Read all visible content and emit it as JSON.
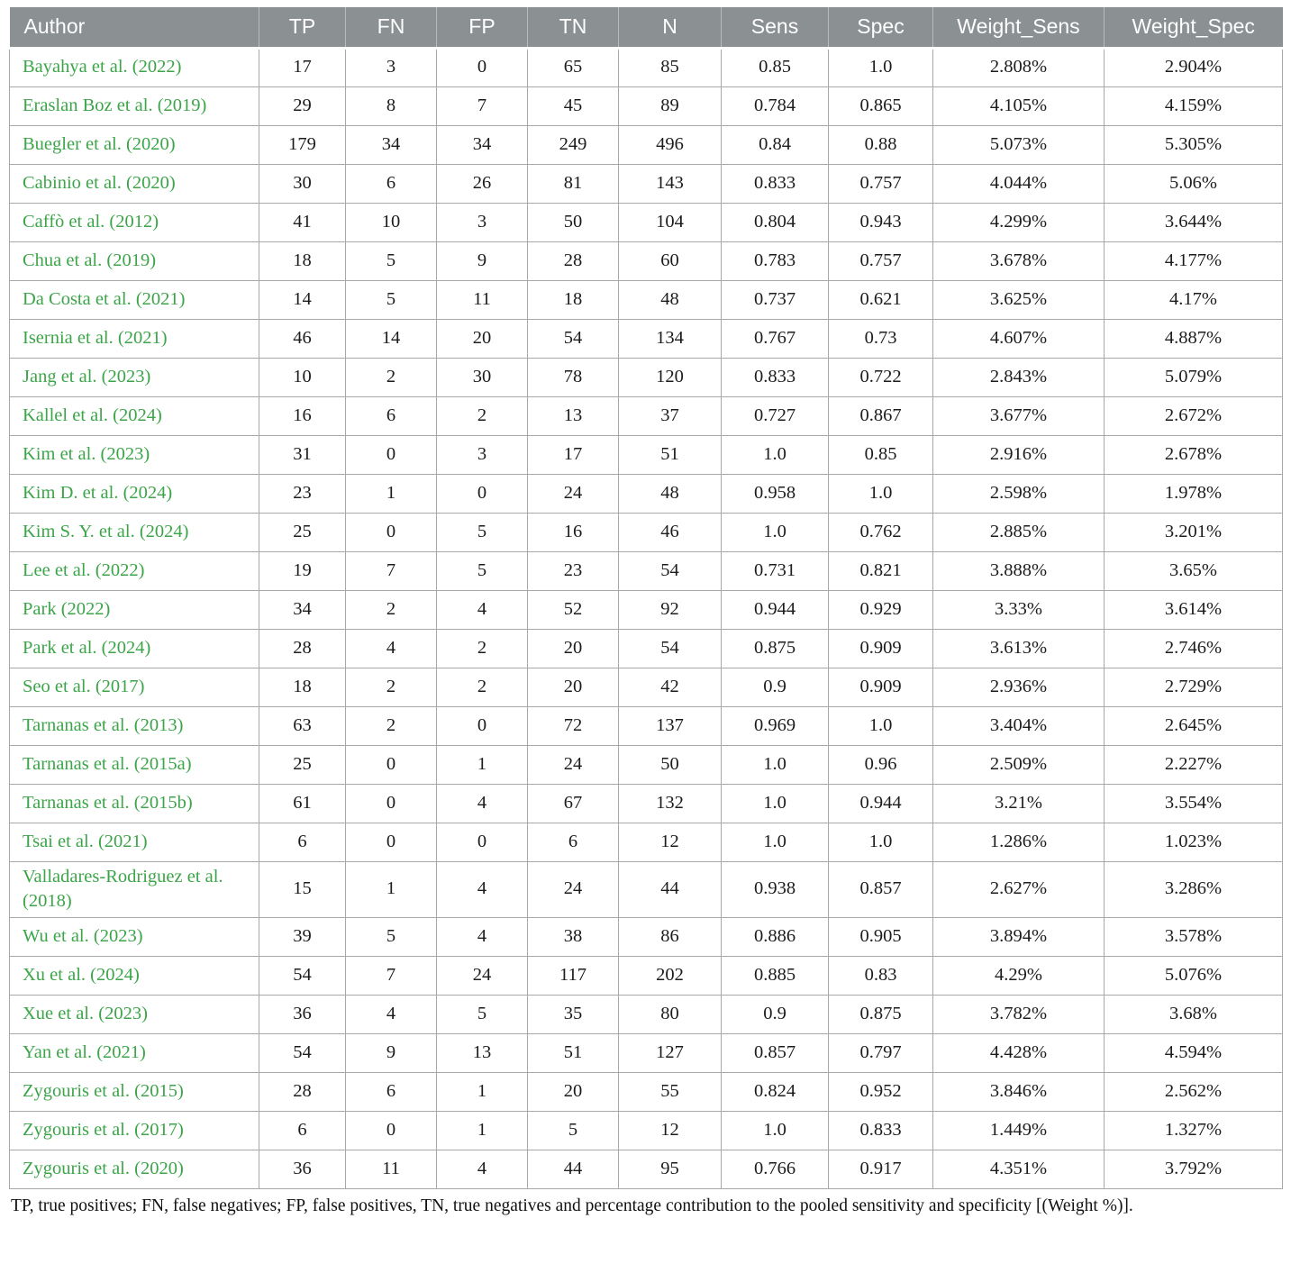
{
  "table": {
    "columns": [
      "Author",
      "TP",
      "FN",
      "FP",
      "TN",
      "N",
      "Sens",
      "Spec",
      "Weight_Sens",
      "Weight_Spec"
    ],
    "rows": [
      [
        "Bayahya et al. (2022)",
        "17",
        "3",
        "0",
        "65",
        "85",
        "0.85",
        "1.0",
        "2.808%",
        "2.904%"
      ],
      [
        "Eraslan Boz et al. (2019)",
        "29",
        "8",
        "7",
        "45",
        "89",
        "0.784",
        "0.865",
        "4.105%",
        "4.159%"
      ],
      [
        "Buegler et al. (2020)",
        "179",
        "34",
        "34",
        "249",
        "496",
        "0.84",
        "0.88",
        "5.073%",
        "5.305%"
      ],
      [
        "Cabinio et al. (2020)",
        "30",
        "6",
        "26",
        "81",
        "143",
        "0.833",
        "0.757",
        "4.044%",
        "5.06%"
      ],
      [
        "Caffò et al. (2012)",
        "41",
        "10",
        "3",
        "50",
        "104",
        "0.804",
        "0.943",
        "4.299%",
        "3.644%"
      ],
      [
        "Chua et al. (2019)",
        "18",
        "5",
        "9",
        "28",
        "60",
        "0.783",
        "0.757",
        "3.678%",
        "4.177%"
      ],
      [
        "Da Costa et al. (2021)",
        "14",
        "5",
        "11",
        "18",
        "48",
        "0.737",
        "0.621",
        "3.625%",
        "4.17%"
      ],
      [
        "Isernia et al. (2021)",
        "46",
        "14",
        "20",
        "54",
        "134",
        "0.767",
        "0.73",
        "4.607%",
        "4.887%"
      ],
      [
        "Jang et al. (2023)",
        "10",
        "2",
        "30",
        "78",
        "120",
        "0.833",
        "0.722",
        "2.843%",
        "5.079%"
      ],
      [
        "Kallel et al. (2024)",
        "16",
        "6",
        "2",
        "13",
        "37",
        "0.727",
        "0.867",
        "3.677%",
        "2.672%"
      ],
      [
        "Kim et al. (2023)",
        "31",
        "0",
        "3",
        "17",
        "51",
        "1.0",
        "0.85",
        "2.916%",
        "2.678%"
      ],
      [
        "Kim D. et al. (2024)",
        "23",
        "1",
        "0",
        "24",
        "48",
        "0.958",
        "1.0",
        "2.598%",
        "1.978%"
      ],
      [
        "Kim S. Y. et al. (2024)",
        "25",
        "0",
        "5",
        "16",
        "46",
        "1.0",
        "0.762",
        "2.885%",
        "3.201%"
      ],
      [
        "Lee et al. (2022)",
        "19",
        "7",
        "5",
        "23",
        "54",
        "0.731",
        "0.821",
        "3.888%",
        "3.65%"
      ],
      [
        "Park (2022)",
        "34",
        "2",
        "4",
        "52",
        "92",
        "0.944",
        "0.929",
        "3.33%",
        "3.614%"
      ],
      [
        "Park et al. (2024)",
        "28",
        "4",
        "2",
        "20",
        "54",
        "0.875",
        "0.909",
        "3.613%",
        "2.746%"
      ],
      [
        "Seo et al. (2017)",
        "18",
        "2",
        "2",
        "20",
        "42",
        "0.9",
        "0.909",
        "2.936%",
        "2.729%"
      ],
      [
        "Tarnanas et al. (2013)",
        "63",
        "2",
        "0",
        "72",
        "137",
        "0.969",
        "1.0",
        "3.404%",
        "2.645%"
      ],
      [
        "Tarnanas et al. (2015a)",
        "25",
        "0",
        "1",
        "24",
        "50",
        "1.0",
        "0.96",
        "2.509%",
        "2.227%"
      ],
      [
        "Tarnanas et al. (2015b)",
        "61",
        "0",
        "4",
        "67",
        "132",
        "1.0",
        "0.944",
        "3.21%",
        "3.554%"
      ],
      [
        "Tsai et al. (2021)",
        "6",
        "0",
        "0",
        "6",
        "12",
        "1.0",
        "1.0",
        "1.286%",
        "1.023%"
      ],
      [
        "Valladares-Rodriguez et al. (2018)",
        "15",
        "1",
        "4",
        "24",
        "44",
        "0.938",
        "0.857",
        "2.627%",
        "3.286%"
      ],
      [
        "Wu et al. (2023)",
        "39",
        "5",
        "4",
        "38",
        "86",
        "0.886",
        "0.905",
        "3.894%",
        "3.578%"
      ],
      [
        "Xu et al. (2024)",
        "54",
        "7",
        "24",
        "117",
        "202",
        "0.885",
        "0.83",
        "4.29%",
        "5.076%"
      ],
      [
        "Xue et al. (2023)",
        "36",
        "4",
        "5",
        "35",
        "80",
        "0.9",
        "0.875",
        "3.782%",
        "3.68%"
      ],
      [
        "Yan et al. (2021)",
        "54",
        "9",
        "13",
        "51",
        "127",
        "0.857",
        "0.797",
        "4.428%",
        "4.594%"
      ],
      [
        "Zygouris et al. (2015)",
        "28",
        "6",
        "1",
        "20",
        "55",
        "0.824",
        "0.952",
        "3.846%",
        "2.562%"
      ],
      [
        "Zygouris et al. (2017)",
        "6",
        "0",
        "1",
        "5",
        "12",
        "1.0",
        "0.833",
        "1.449%",
        "1.327%"
      ],
      [
        "Zygouris et al. (2020)",
        "36",
        "11",
        "4",
        "44",
        "95",
        "0.766",
        "0.917",
        "4.351%",
        "3.792%"
      ]
    ]
  },
  "footnote": "TP, true positives; FN, false negatives; FP, false positives, TN, true negatives and percentage contribution to the pooled sensitivity and specificity [(Weight %)].",
  "colors": {
    "header_background": "#8b9093",
    "header_text": "#ffffff",
    "citation_green": "#3ca549",
    "cell_border": "#a6a9ab",
    "body_text": "#1c1c1c"
  }
}
